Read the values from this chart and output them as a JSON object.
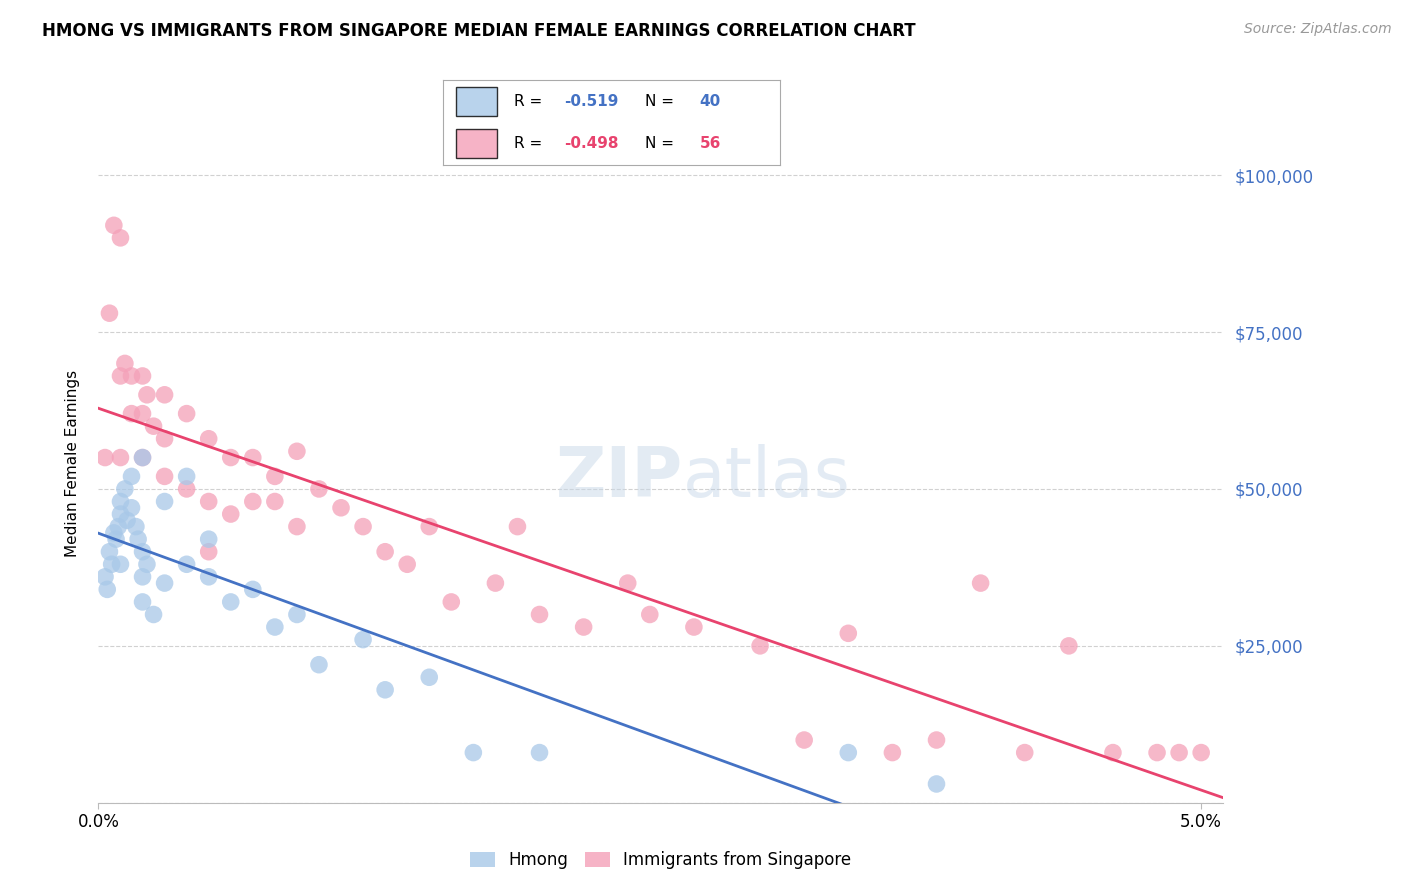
{
  "title": "HMONG VS IMMIGRANTS FROM SINGAPORE MEDIAN FEMALE EARNINGS CORRELATION CHART",
  "source": "Source: ZipAtlas.com",
  "ylabel": "Median Female Earnings",
  "ytick_vals": [
    0,
    25000,
    50000,
    75000,
    100000
  ],
  "ytick_labels": [
    "",
    "$25,000",
    "$50,000",
    "$75,000",
    "$100,000"
  ],
  "xlim": [
    0.0,
    0.051
  ],
  "ylim": [
    0,
    108000
  ],
  "legend_r1": "-0.519",
  "legend_n1": "40",
  "legend_r2": "-0.498",
  "legend_n2": "56",
  "label_hmong": "Hmong",
  "label_singapore": "Immigrants from Singapore",
  "color_blue_scatter": "#a8c8e8",
  "color_pink_scatter": "#f4a0b8",
  "color_blue_line": "#4472c4",
  "color_pink_line": "#e8436e",
  "color_blue_text": "#4472c4",
  "color_pink_text": "#e8436e",
  "hmong_x": [
    0.0003,
    0.0004,
    0.0005,
    0.0006,
    0.0007,
    0.0008,
    0.0009,
    0.001,
    0.001,
    0.001,
    0.0012,
    0.0013,
    0.0015,
    0.0015,
    0.0017,
    0.0018,
    0.002,
    0.002,
    0.002,
    0.002,
    0.0022,
    0.0025,
    0.003,
    0.003,
    0.004,
    0.004,
    0.005,
    0.005,
    0.006,
    0.007,
    0.008,
    0.009,
    0.01,
    0.012,
    0.013,
    0.015,
    0.017,
    0.02,
    0.034,
    0.038
  ],
  "hmong_y": [
    36000,
    34000,
    40000,
    38000,
    43000,
    42000,
    44000,
    46000,
    48000,
    38000,
    50000,
    45000,
    52000,
    47000,
    44000,
    42000,
    55000,
    40000,
    36000,
    32000,
    38000,
    30000,
    48000,
    35000,
    52000,
    38000,
    42000,
    36000,
    32000,
    34000,
    28000,
    30000,
    22000,
    26000,
    18000,
    20000,
    8000,
    8000,
    8000,
    3000
  ],
  "singapore_x": [
    0.0003,
    0.0005,
    0.0007,
    0.001,
    0.001,
    0.001,
    0.0012,
    0.0015,
    0.0015,
    0.002,
    0.002,
    0.002,
    0.0022,
    0.0025,
    0.003,
    0.003,
    0.003,
    0.004,
    0.004,
    0.005,
    0.005,
    0.005,
    0.006,
    0.006,
    0.007,
    0.007,
    0.008,
    0.008,
    0.009,
    0.009,
    0.01,
    0.011,
    0.012,
    0.013,
    0.014,
    0.015,
    0.016,
    0.018,
    0.019,
    0.02,
    0.022,
    0.024,
    0.025,
    0.027,
    0.03,
    0.032,
    0.034,
    0.036,
    0.038,
    0.04,
    0.042,
    0.044,
    0.046,
    0.048,
    0.049,
    0.05
  ],
  "singapore_y": [
    55000,
    78000,
    92000,
    90000,
    68000,
    55000,
    70000,
    68000,
    62000,
    68000,
    62000,
    55000,
    65000,
    60000,
    65000,
    58000,
    52000,
    62000,
    50000,
    58000,
    48000,
    40000,
    55000,
    46000,
    55000,
    48000,
    52000,
    48000,
    56000,
    44000,
    50000,
    47000,
    44000,
    40000,
    38000,
    44000,
    32000,
    35000,
    44000,
    30000,
    28000,
    35000,
    30000,
    28000,
    25000,
    10000,
    27000,
    8000,
    10000,
    35000,
    8000,
    25000,
    8000,
    8000,
    8000,
    8000
  ]
}
